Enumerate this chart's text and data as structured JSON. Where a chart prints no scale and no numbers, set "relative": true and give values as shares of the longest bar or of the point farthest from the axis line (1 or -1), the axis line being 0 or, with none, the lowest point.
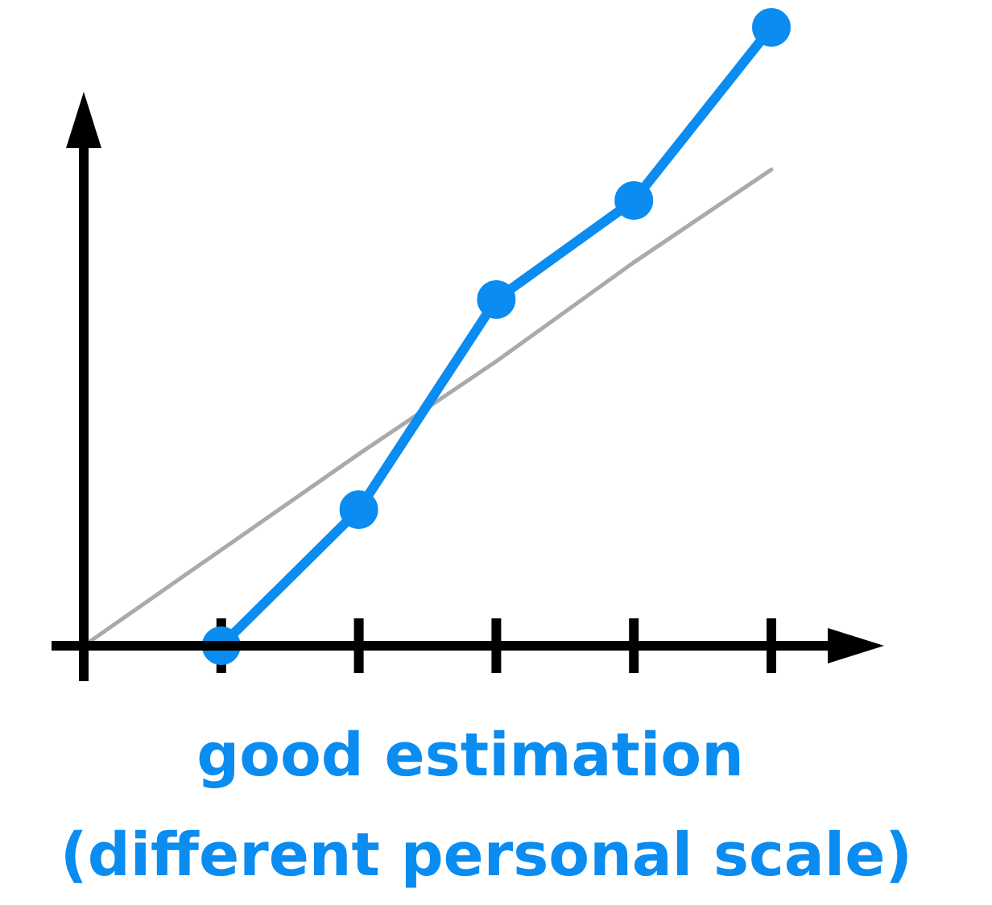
{
  "chart_data": {
    "type": "line",
    "relative": true,
    "tick_labels": false,
    "xlabel": "good estimation\n(different personal scale)",
    "categories": [
      null,
      null,
      null,
      null,
      null,
      null
    ],
    "series": [
      {
        "color": "#aaaaaa",
        "marker": "none",
        "values": [
          0,
          0.155,
          0.31,
          0.46,
          0.62,
          0.77
        ]
      },
      {
        "color": "#0a8cf0",
        "marker": "circle",
        "values": [
          null,
          0,
          0.22,
          0.56,
          0.72,
          1
        ]
      }
    ]
  }
}
